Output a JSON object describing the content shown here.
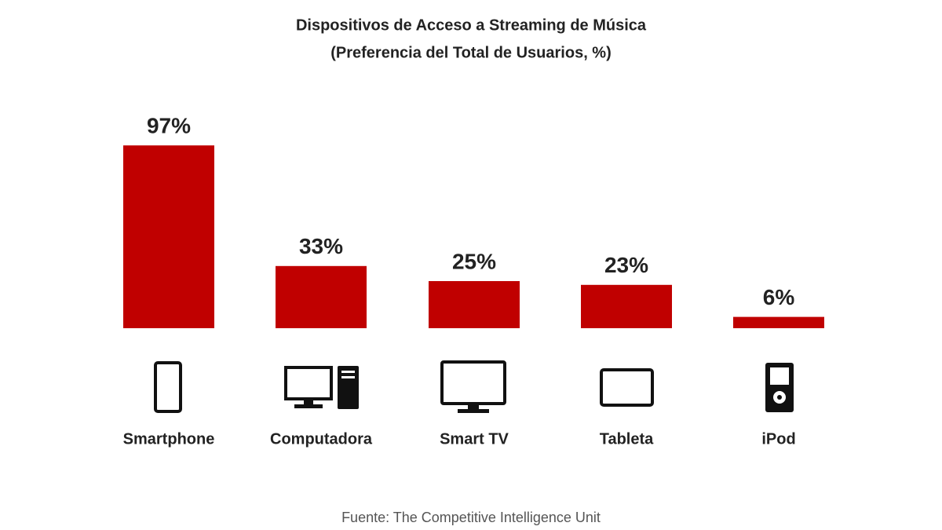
{
  "chart_data": {
    "type": "bar",
    "title": "Dispositivos de Acceso a Streaming de Música",
    "subtitle": "(Preferencia del Total de Usuarios, %)",
    "categories": [
      "Smartphone",
      "Computadora",
      "Smart TV",
      "Tableta",
      "iPod"
    ],
    "values": [
      97,
      33,
      25,
      23,
      6
    ],
    "value_labels": [
      "97%",
      "33%",
      "25%",
      "23%",
      "6%"
    ],
    "color": "#c00000",
    "source": "Fuente: The Competitive Intelligence Unit"
  }
}
